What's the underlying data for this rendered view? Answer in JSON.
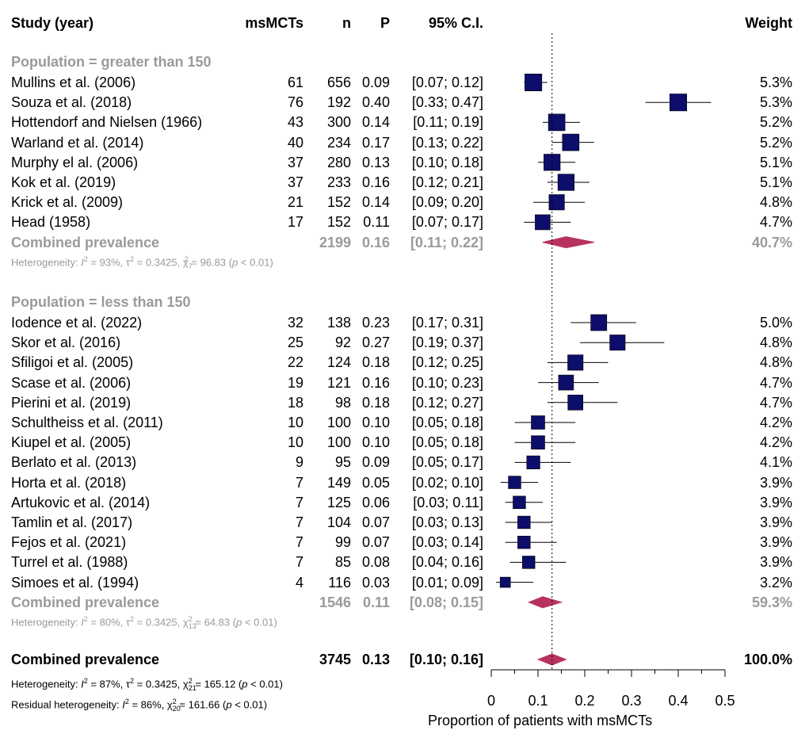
{
  "headers": {
    "study": "Study (year)",
    "events": "msMCTs",
    "n": "n",
    "p": "P",
    "ci": "95% C.I.",
    "weight": "Weight"
  },
  "groups": [
    {
      "title": "Population = greater than 150",
      "studies": [
        {
          "name": "Mullins et al. (2006)",
          "events": "61",
          "n": "656",
          "p": "0.09",
          "ci": "[0.07; 0.12]",
          "weight": "5.3%"
        },
        {
          "name": "Souza et al. (2018)",
          "events": "76",
          "n": "192",
          "p": "0.40",
          "ci": "[0.33; 0.47]",
          "weight": "5.3%"
        },
        {
          "name": "Hottendorf and Nielsen (1966)",
          "events": "43",
          "n": "300",
          "p": "0.14",
          "ci": "[0.11; 0.19]",
          "weight": "5.2%"
        },
        {
          "name": "Warland et al. (2014)",
          "events": "40",
          "n": "234",
          "p": "0.17",
          "ci": "[0.13; 0.22]",
          "weight": "5.2%"
        },
        {
          "name": "Murphy el al. (2006)",
          "events": "37",
          "n": "280",
          "p": "0.13",
          "ci": "[0.10; 0.18]",
          "weight": "5.1%"
        },
        {
          "name": "Kok et al. (2019)",
          "events": "37",
          "n": "233",
          "p": "0.16",
          "ci": "[0.12; 0.21]",
          "weight": "5.1%"
        },
        {
          "name": "Krick et al. (2009)",
          "events": "21",
          "n": "152",
          "p": "0.14",
          "ci": "[0.09; 0.20]",
          "weight": "4.8%"
        },
        {
          "name": "Head (1958)",
          "events": "17",
          "n": "152",
          "p": "0.11",
          "ci": "[0.07; 0.17]",
          "weight": "4.7%"
        }
      ],
      "combined": {
        "label": "Combined prevalence",
        "n": "2199",
        "p": "0.16",
        "ci": "[0.11; 0.22]",
        "weight": "40.7%"
      },
      "heterogeneity": {
        "prefix": "Heterogeneity: ",
        "i2": "93%",
        "tau2": "0.3425",
        "df": "7",
        "chi2": "96.83",
        "pval": "< 0.01"
      }
    },
    {
      "title": "Population = less than 150",
      "studies": [
        {
          "name": "Iodence et al. (2022)",
          "events": "32",
          "n": "138",
          "p": "0.23",
          "ci": "[0.17; 0.31]",
          "weight": "5.0%"
        },
        {
          "name": "Skor et al. (2016)",
          "events": "25",
          "n": "92",
          "p": "0.27",
          "ci": "[0.19; 0.37]",
          "weight": "4.8%"
        },
        {
          "name": "Sfiligoi et al. (2005)",
          "events": "22",
          "n": "124",
          "p": "0.18",
          "ci": "[0.12; 0.25]",
          "weight": "4.8%"
        },
        {
          "name": "Scase et al. (2006)",
          "events": "19",
          "n": "121",
          "p": "0.16",
          "ci": "[0.10; 0.23]",
          "weight": "4.7%"
        },
        {
          "name": "Pierini et al. (2019)",
          "events": "18",
          "n": "98",
          "p": "0.18",
          "ci": "[0.12; 0.27]",
          "weight": "4.7%"
        },
        {
          "name": "Schultheiss et al. (2011)",
          "events": "10",
          "n": "100",
          "p": "0.10",
          "ci": "[0.05; 0.18]",
          "weight": "4.2%"
        },
        {
          "name": "Kiupel et al. (2005)",
          "events": "10",
          "n": "100",
          "p": "0.10",
          "ci": "[0.05; 0.18]",
          "weight": "4.2%"
        },
        {
          "name": "Berlato et al. (2013)",
          "events": "9",
          "n": "95",
          "p": "0.09",
          "ci": "[0.05; 0.17]",
          "weight": "4.1%"
        },
        {
          "name": "Horta et al. (2018)",
          "events": "7",
          "n": "149",
          "p": "0.05",
          "ci": "[0.02; 0.10]",
          "weight": "3.9%"
        },
        {
          "name": "Artukovic et al. (2014)",
          "events": "7",
          "n": "125",
          "p": "0.06",
          "ci": "[0.03; 0.11]",
          "weight": "3.9%"
        },
        {
          "name": "Tamlin et al. (2017)",
          "events": "7",
          "n": "104",
          "p": "0.07",
          "ci": "[0.03; 0.13]",
          "weight": "3.9%"
        },
        {
          "name": "Fejos et al. (2021)",
          "events": "7",
          "n": "99",
          "p": "0.07",
          "ci": "[0.03; 0.14]",
          "weight": "3.9%"
        },
        {
          "name": "Turrel et al. (1988)",
          "events": "7",
          "n": "85",
          "p": "0.08",
          "ci": "[0.04; 0.16]",
          "weight": "3.9%"
        },
        {
          "name": "Simoes et al. (1994)",
          "events": "4",
          "n": "116",
          "p": "0.03",
          "ci": "[0.01; 0.09]",
          "weight": "3.2%"
        }
      ],
      "combined": {
        "label": "Combined prevalence",
        "n": "1546",
        "p": "0.11",
        "ci": "[0.08; 0.15]",
        "weight": "59.3%"
      },
      "heterogeneity": {
        "prefix": "Heterogeneity: ",
        "i2": "80%",
        "tau2": "0.3425",
        "df": "13",
        "chi2": "64.83",
        "pval": "< 0.01"
      }
    }
  ],
  "overall": {
    "label": "Combined prevalence",
    "n": "3745",
    "p": "0.13",
    "ci": "[0.10; 0.16]",
    "weight": "100.0%",
    "heterogeneity": {
      "prefix": "Heterogeneity: ",
      "i2": "87%",
      "tau2": "0.3425",
      "df": "21",
      "chi2": "165.12",
      "pval": "< 0.01"
    },
    "residual": {
      "prefix": "Residual heterogeneity: ",
      "i2": "86%",
      "df": "20",
      "chi2": "161.66",
      "pval": "< 0.01"
    }
  },
  "colors": {
    "square": "#0d0d6b",
    "diamond": "#b83261",
    "grey": "#9a9a9a"
  },
  "chart_data": {
    "type": "forest",
    "xlabel": "Proportion of patients with msMCTs",
    "xlim": [
      0,
      0.5
    ],
    "ticks": [
      "0",
      "0.1",
      "0.2",
      "0.3",
      "0.4",
      "0.5"
    ],
    "reference_line": 0.13,
    "series": [
      {
        "name": "Population = greater than 150",
        "points": [
          {
            "study": "Mullins et al. (2006)",
            "est": 0.09,
            "lo": 0.07,
            "hi": 0.12,
            "w": 5.3
          },
          {
            "study": "Souza et al. (2018)",
            "est": 0.4,
            "lo": 0.33,
            "hi": 0.47,
            "w": 5.3
          },
          {
            "study": "Hottendorf and Nielsen (1966)",
            "est": 0.14,
            "lo": 0.11,
            "hi": 0.19,
            "w": 5.2
          },
          {
            "study": "Warland et al. (2014)",
            "est": 0.17,
            "lo": 0.13,
            "hi": 0.22,
            "w": 5.2
          },
          {
            "study": "Murphy el al. (2006)",
            "est": 0.13,
            "lo": 0.1,
            "hi": 0.18,
            "w": 5.1
          },
          {
            "study": "Kok et al. (2019)",
            "est": 0.16,
            "lo": 0.12,
            "hi": 0.21,
            "w": 5.1
          },
          {
            "study": "Krick et al. (2009)",
            "est": 0.14,
            "lo": 0.09,
            "hi": 0.2,
            "w": 4.8
          },
          {
            "study": "Head (1958)",
            "est": 0.11,
            "lo": 0.07,
            "hi": 0.17,
            "w": 4.7
          }
        ],
        "pooled": {
          "est": 0.16,
          "lo": 0.11,
          "hi": 0.22
        }
      },
      {
        "name": "Population = less than 150",
        "points": [
          {
            "study": "Iodence et al. (2022)",
            "est": 0.23,
            "lo": 0.17,
            "hi": 0.31,
            "w": 5.0
          },
          {
            "study": "Skor et al. (2016)",
            "est": 0.27,
            "lo": 0.19,
            "hi": 0.37,
            "w": 4.8
          },
          {
            "study": "Sfiligoi et al. (2005)",
            "est": 0.18,
            "lo": 0.12,
            "hi": 0.25,
            "w": 4.8
          },
          {
            "study": "Scase et al. (2006)",
            "est": 0.16,
            "lo": 0.1,
            "hi": 0.23,
            "w": 4.7
          },
          {
            "study": "Pierini et al. (2019)",
            "est": 0.18,
            "lo": 0.12,
            "hi": 0.27,
            "w": 4.7
          },
          {
            "study": "Schultheiss et al. (2011)",
            "est": 0.1,
            "lo": 0.05,
            "hi": 0.18,
            "w": 4.2
          },
          {
            "study": "Kiupel et al. (2005)",
            "est": 0.1,
            "lo": 0.05,
            "hi": 0.18,
            "w": 4.2
          },
          {
            "study": "Berlato et al. (2013)",
            "est": 0.09,
            "lo": 0.05,
            "hi": 0.17,
            "w": 4.1
          },
          {
            "study": "Horta et al. (2018)",
            "est": 0.05,
            "lo": 0.02,
            "hi": 0.1,
            "w": 3.9
          },
          {
            "study": "Artukovic et al. (2014)",
            "est": 0.06,
            "lo": 0.03,
            "hi": 0.11,
            "w": 3.9
          },
          {
            "study": "Tamlin et al. (2017)",
            "est": 0.07,
            "lo": 0.03,
            "hi": 0.13,
            "w": 3.9
          },
          {
            "study": "Fejos et al. (2021)",
            "est": 0.07,
            "lo": 0.03,
            "hi": 0.14,
            "w": 3.9
          },
          {
            "study": "Turrel et al. (1988)",
            "est": 0.08,
            "lo": 0.04,
            "hi": 0.16,
            "w": 3.9
          },
          {
            "study": "Simoes et al. (1994)",
            "est": 0.03,
            "lo": 0.01,
            "hi": 0.09,
            "w": 3.2
          }
        ],
        "pooled": {
          "est": 0.11,
          "lo": 0.08,
          "hi": 0.15
        }
      }
    ],
    "overall": {
      "est": 0.13,
      "lo": 0.1,
      "hi": 0.16
    }
  }
}
